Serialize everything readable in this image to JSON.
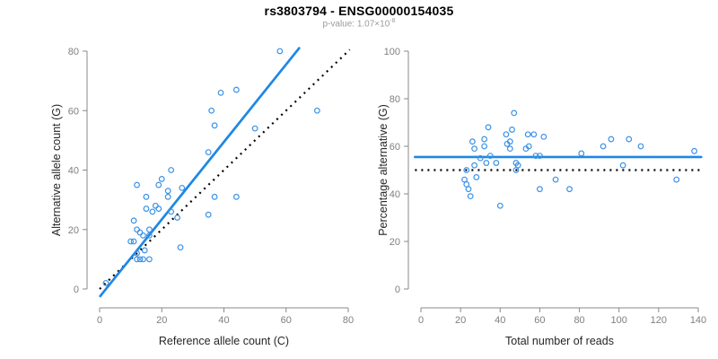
{
  "header": {
    "title": "rs3803794 - ENSG00000154035",
    "subtitle_prefix": "p-value: 1.07×10",
    "subtitle_exponent": "-8"
  },
  "colors": {
    "accent": "#1e87e5",
    "point": "#3b92e6",
    "reference": "#000000",
    "axis": "#898989",
    "tick_label": "#7f7f7f",
    "axis_label": "#262626",
    "subtitle": "#9b9b9b"
  },
  "chart_data": [
    {
      "type": "scatter",
      "xlabel": "Reference allele count (C)",
      "ylabel": "Alternative allele count (G)",
      "xlim": [
        0,
        80
      ],
      "ylim": [
        0,
        80
      ],
      "xticks": [
        0,
        20,
        40,
        60,
        80
      ],
      "yticks": [
        0,
        20,
        40,
        60,
        80
      ],
      "grid": false,
      "legend": "none",
      "points": [
        [
          2,
          2
        ],
        [
          10,
          16
        ],
        [
          11,
          16
        ],
        [
          12,
          10
        ],
        [
          13,
          10
        ],
        [
          14,
          10
        ],
        [
          16,
          10
        ],
        [
          12,
          12
        ],
        [
          14.5,
          13
        ],
        [
          26,
          14
        ],
        [
          13,
          19
        ],
        [
          14,
          18
        ],
        [
          16,
          18
        ],
        [
          12,
          20
        ],
        [
          16,
          20
        ],
        [
          11,
          23
        ],
        [
          17,
          26
        ],
        [
          23,
          26
        ],
        [
          25,
          24
        ],
        [
          15,
          27
        ],
        [
          19,
          27
        ],
        [
          18,
          28
        ],
        [
          35,
          25
        ],
        [
          12,
          35
        ],
        [
          15,
          31
        ],
        [
          19,
          35
        ],
        [
          20,
          37
        ],
        [
          22,
          31
        ],
        [
          22,
          33
        ],
        [
          23,
          40
        ],
        [
          26.5,
          34
        ],
        [
          37,
          31
        ],
        [
          44,
          31
        ],
        [
          35,
          46
        ],
        [
          36,
          60
        ],
        [
          37,
          55
        ],
        [
          39,
          66
        ],
        [
          44,
          67
        ],
        [
          50,
          54
        ],
        [
          58,
          80
        ],
        [
          70,
          60
        ]
      ],
      "fit_line": {
        "x1": 0.2,
        "y1": -2.4,
        "x2": 64.2,
        "y2": 81,
        "style": "solid",
        "color_key": "accent"
      },
      "ref_line": {
        "x1": 0,
        "y1": 0,
        "x2": 80.5,
        "y2": 80.5,
        "style": "dotted",
        "color_key": "reference"
      }
    },
    {
      "type": "scatter",
      "xlabel": "Total number of reads",
      "ylabel": "Percentage alternative (G)",
      "xlim": [
        0,
        140
      ],
      "ylim": [
        0,
        100
      ],
      "xticks": [
        0,
        20,
        40,
        60,
        80,
        100,
        120,
        140
      ],
      "yticks": [
        0,
        20,
        40,
        60,
        80,
        100
      ],
      "grid": false,
      "legend": "none",
      "points": [
        [
          22,
          46
        ],
        [
          23,
          44
        ],
        [
          23,
          50
        ],
        [
          24,
          42
        ],
        [
          25,
          39
        ],
        [
          26,
          62
        ],
        [
          27,
          59
        ],
        [
          27,
          52
        ],
        [
          28,
          47
        ],
        [
          30,
          55
        ],
        [
          32,
          63
        ],
        [
          32,
          60
        ],
        [
          33,
          53
        ],
        [
          34,
          68
        ],
        [
          35,
          56
        ],
        [
          38,
          53
        ],
        [
          40,
          35
        ],
        [
          43,
          65
        ],
        [
          43.5,
          61
        ],
        [
          45,
          62
        ],
        [
          45,
          59
        ],
        [
          46,
          67
        ],
        [
          47,
          74
        ],
        [
          48,
          53
        ],
        [
          48,
          50
        ],
        [
          49,
          52
        ],
        [
          53,
          59
        ],
        [
          54,
          65
        ],
        [
          54.5,
          60
        ],
        [
          57,
          65
        ],
        [
          58,
          56
        ],
        [
          60,
          56
        ],
        [
          60,
          42
        ],
        [
          62,
          64
        ],
        [
          68,
          46
        ],
        [
          75,
          42
        ],
        [
          81,
          57
        ],
        [
          92,
          60
        ],
        [
          96,
          63
        ],
        [
          102,
          52
        ],
        [
          105,
          63
        ],
        [
          111,
          60
        ],
        [
          129,
          46
        ],
        [
          138,
          58
        ]
      ],
      "fit_line": {
        "x1": -3,
        "y1": 55.5,
        "x2": 141.5,
        "y2": 55.5,
        "style": "solid",
        "color_key": "accent"
      },
      "ref_line": {
        "x1": -3,
        "y1": 50,
        "x2": 141.5,
        "y2": 50,
        "style": "dotted",
        "color_key": "reference"
      }
    }
  ]
}
